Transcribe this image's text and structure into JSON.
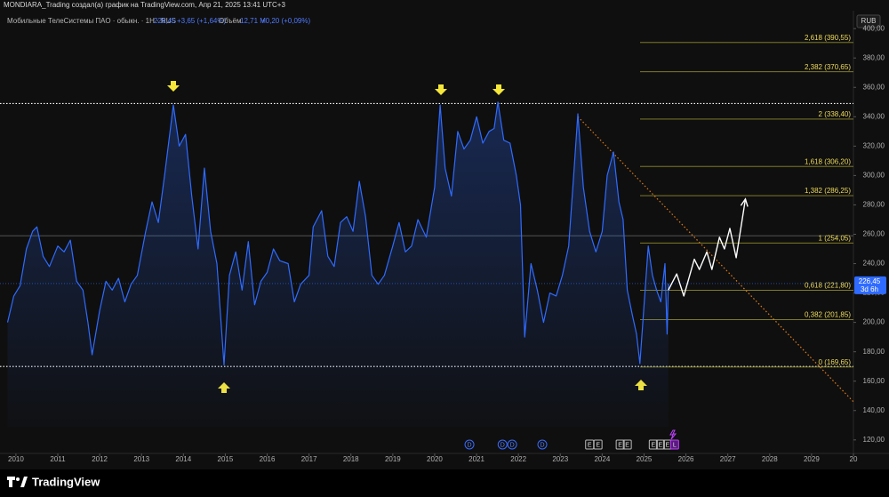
{
  "chart_data": {
    "type": "line",
    "header": "MONDIARA_Trading создал(а) график на TradingView.com, Апр 21, 2025 13:41 UTC+3",
    "symbol": "Мобильные ТелеСистемы ПАО · обыкн. · 1H · RUS",
    "quote": "226,45",
    "change": "+3,65 (+1,64%)",
    "volume_label": "Объём",
    "volume": "12,71 M",
    "volume_change": "+0,20 (+0,09%)",
    "currency": "RUB",
    "last_price": {
      "value": 226.45,
      "label": "226,45"
    },
    "countdown": "3d 6h",
    "brand": "TradingView",
    "xlim": [
      2009.62,
      2030.0
    ],
    "ylim": [
      110.8,
      412.2
    ],
    "xticks": [
      2010,
      2011,
      2012,
      2013,
      2014,
      2015,
      2016,
      2017,
      2018,
      2019,
      2020,
      2021,
      2022,
      2023,
      2024,
      2025,
      2026,
      2027,
      2028,
      2029,
      {
        "value": 2030,
        "label": "20"
      }
    ],
    "yticks": [
      {
        "value": 120,
        "label": "120,00"
      },
      {
        "value": 140,
        "label": "140,00"
      },
      {
        "value": 160,
        "label": "160,00"
      },
      {
        "value": 180,
        "label": "180,00"
      },
      {
        "value": 200,
        "label": "200,00"
      },
      {
        "value": 220,
        "label": "220,00"
      },
      {
        "value": 240,
        "label": "240,00"
      },
      {
        "value": 260,
        "label": "260,00"
      },
      {
        "value": 280,
        "label": "280,00"
      },
      {
        "value": 300,
        "label": "300,00"
      },
      {
        "value": 320,
        "label": "320,00"
      },
      {
        "value": 340,
        "label": "340,00"
      },
      {
        "value": 360,
        "label": "360,00"
      },
      {
        "value": 380,
        "label": "380,00"
      },
      {
        "value": 400,
        "label": "400,00"
      }
    ],
    "series": [
      {
        "color": "#2f6bff",
        "x": [
          2009.8,
          2009.95,
          2010.1,
          2010.25,
          2010.4,
          2010.5,
          2010.65,
          2010.8,
          2011.0,
          2011.15,
          2011.3,
          2011.45,
          2011.6,
          2011.72,
          2011.82,
          2012.0,
          2012.15,
          2012.3,
          2012.45,
          2012.6,
          2012.75,
          2012.9,
          2013.1,
          2013.25,
          2013.4,
          2013.55,
          2013.76,
          2013.9,
          2014.05,
          2014.2,
          2014.35,
          2014.5,
          2014.65,
          2014.8,
          2014.97,
          2015.1,
          2015.25,
          2015.4,
          2015.55,
          2015.7,
          2015.85,
          2016.0,
          2016.15,
          2016.3,
          2016.5,
          2016.65,
          2016.8,
          2017.0,
          2017.1,
          2017.3,
          2017.45,
          2017.6,
          2017.75,
          2017.9,
          2018.05,
          2018.2,
          2018.35,
          2018.5,
          2018.65,
          2018.8,
          2019.0,
          2019.15,
          2019.3,
          2019.45,
          2019.6,
          2019.8,
          2020.0,
          2020.13,
          2020.25,
          2020.4,
          2020.55,
          2020.7,
          2020.85,
          2021.0,
          2021.15,
          2021.3,
          2021.42,
          2021.51,
          2021.65,
          2021.8,
          2021.95,
          2022.05,
          2022.15,
          2022.3,
          2022.45,
          2022.6,
          2022.75,
          2022.9,
          2023.05,
          2023.2,
          2023.32,
          2023.42,
          2023.55,
          2023.7,
          2023.85,
          2024.0,
          2024.12,
          2024.27,
          2024.4,
          2024.5,
          2024.6,
          2024.72,
          2024.82,
          2024.9,
          2025.0,
          2025.1,
          2025.2,
          2025.3,
          2025.4,
          2025.5,
          2025.55,
          2025.58
        ],
        "values": [
          200,
          218,
          225,
          250,
          262,
          265,
          245,
          238,
          252,
          248,
          256,
          228,
          222,
          200,
          178,
          208,
          228,
          222,
          230,
          214,
          226,
          232,
          262,
          282,
          268,
          300,
          348,
          320,
          328,
          286,
          250,
          305,
          262,
          240,
          171,
          232,
          248,
          222,
          255,
          212,
          228,
          234,
          250,
          242,
          240,
          214,
          226,
          232,
          265,
          276,
          245,
          238,
          268,
          272,
          262,
          296,
          272,
          232,
          226,
          232,
          252,
          268,
          248,
          252,
          270,
          258,
          292,
          348,
          305,
          286,
          330,
          318,
          324,
          340,
          322,
          330,
          332,
          350,
          324,
          322,
          300,
          280,
          190,
          240,
          222,
          200,
          220,
          218,
          232,
          252,
          300,
          342,
          292,
          262,
          248,
          262,
          300,
          316,
          282,
          270,
          222,
          205,
          192,
          172,
          212,
          252,
          232,
          222,
          214,
          240,
          192,
          226.45
        ]
      },
      {
        "color": "#ffffff",
        "x": [
          2025.58,
          2025.78,
          2025.95,
          2026.2,
          2026.32,
          2026.5,
          2026.62,
          2026.8,
          2026.92,
          2027.05,
          2027.2,
          2027.42
        ],
        "values": [
          222,
          233,
          218,
          243,
          236,
          248,
          236,
          258,
          250,
          264,
          244,
          284
        ]
      }
    ],
    "levels": [
      {
        "value": 390.55,
        "label": "2,618 (390,55)"
      },
      {
        "value": 370.65,
        "label": "2,382 (370,65)"
      },
      {
        "value": 338.4,
        "label": "2 (338,40)"
      },
      {
        "value": 306.2,
        "label": "1,618 (306,20)"
      },
      {
        "value": 286.25,
        "label": "1,382 (286,25)"
      },
      {
        "value": 254.05,
        "label": "1 (254,05)"
      },
      {
        "value": 221.8,
        "label": "0,618 (221,80)"
      },
      {
        "value": 201.85,
        "label": "0,382 (201,85)"
      },
      {
        "value": 169.65,
        "label": "0 (169,65)"
      }
    ],
    "range_lines": [
      349,
      170
    ],
    "mid_line": 259,
    "trendline": {
      "x": [
        2023.42,
        2030.0
      ],
      "y": [
        340,
        146
      ]
    },
    "events": [
      {
        "x": 2020.83,
        "label": "D"
      },
      {
        "x": 2021.62,
        "label": "D"
      },
      {
        "x": 2021.85,
        "label": "D"
      },
      {
        "x": 2022.57,
        "label": "D"
      },
      {
        "x": 2023.7,
        "label": "E"
      },
      {
        "x": 2023.9,
        "label": "E"
      },
      {
        "x": 2024.43,
        "label": "E"
      },
      {
        "x": 2024.6,
        "label": "E"
      },
      {
        "x": 2025.22,
        "label": "E"
      },
      {
        "x": 2025.39,
        "label": "E"
      },
      {
        "x": 2025.56,
        "label": "E"
      },
      {
        "x": 2025.73,
        "label": "L"
      }
    ]
  }
}
